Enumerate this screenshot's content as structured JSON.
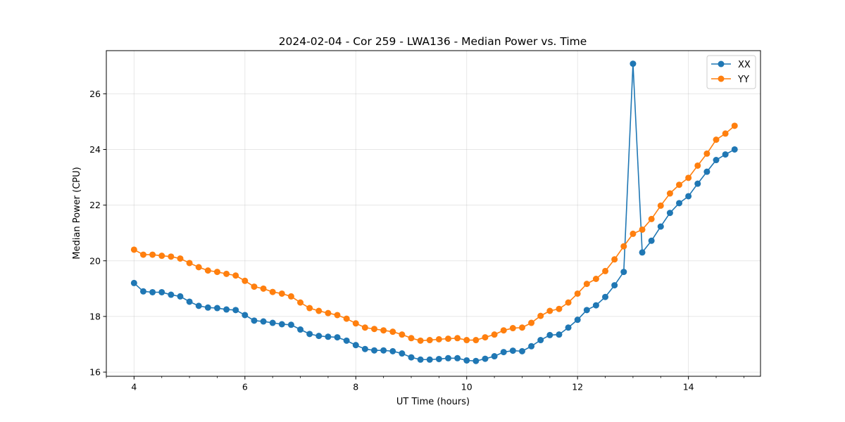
{
  "chart_data": {
    "type": "line",
    "title": "2024-02-04 - Cor 259 - LWA136 - Median Power vs. Time",
    "xlabel": "UT Time (hours)",
    "ylabel": "Median Power (CPU)",
    "xlim": [
      3.5,
      15.3
    ],
    "ylim": [
      15.85,
      27.55
    ],
    "xticks": [
      4,
      6,
      8,
      10,
      12,
      14
    ],
    "xtick_labels": [
      "4",
      "6",
      "8",
      "10",
      "12",
      "14"
    ],
    "xminor_step": 0.5,
    "yticks": [
      16,
      18,
      20,
      22,
      24,
      26
    ],
    "ytick_labels": [
      "16",
      "18",
      "20",
      "22",
      "24",
      "26"
    ],
    "grid": true,
    "legend_position": "top-right",
    "x": [
      4.0,
      4.1667,
      4.3333,
      4.5,
      4.6667,
      4.8333,
      5.0,
      5.1667,
      5.3333,
      5.5,
      5.6667,
      5.8333,
      6.0,
      6.1667,
      6.3333,
      6.5,
      6.6667,
      6.8333,
      7.0,
      7.1667,
      7.3333,
      7.5,
      7.6667,
      7.8333,
      8.0,
      8.1667,
      8.3333,
      8.5,
      8.6667,
      8.8333,
      9.0,
      9.1667,
      9.3333,
      9.5,
      9.6667,
      9.8333,
      10.0,
      10.1667,
      10.3333,
      10.5,
      10.6667,
      10.8333,
      11.0,
      11.1667,
      11.3333,
      11.5,
      11.6667,
      11.8333,
      12.0,
      12.1667,
      12.3333,
      12.5,
      12.6667,
      12.8333,
      13.0,
      13.1667,
      13.3333,
      13.5,
      13.6667,
      13.8333,
      14.0,
      14.1667,
      14.3333,
      14.5,
      14.6667,
      14.8333
    ],
    "series": [
      {
        "name": "XX",
        "color": "#1f77b4",
        "values": [
          19.2,
          18.9,
          18.87,
          18.87,
          18.78,
          18.72,
          18.53,
          18.38,
          18.32,
          18.3,
          18.25,
          18.23,
          18.05,
          17.85,
          17.82,
          17.77,
          17.72,
          17.7,
          17.53,
          17.37,
          17.3,
          17.27,
          17.25,
          17.13,
          16.97,
          16.83,
          16.78,
          16.78,
          16.75,
          16.67,
          16.53,
          16.45,
          16.45,
          16.47,
          16.5,
          16.5,
          16.42,
          16.4,
          16.48,
          16.57,
          16.72,
          16.77,
          16.75,
          16.93,
          17.15,
          17.33,
          17.35,
          17.6,
          17.88,
          18.23,
          18.4,
          18.7,
          19.12,
          19.6,
          27.08,
          20.3,
          20.72,
          21.23,
          21.72,
          22.07,
          22.32,
          22.77,
          23.2,
          23.62,
          23.82,
          24.0
        ]
      },
      {
        "name": "YY",
        "color": "#ff7f0e",
        "values": [
          20.4,
          20.22,
          20.22,
          20.18,
          20.15,
          20.08,
          19.92,
          19.77,
          19.65,
          19.6,
          19.53,
          19.47,
          19.28,
          19.07,
          19.0,
          18.88,
          18.82,
          18.72,
          18.5,
          18.3,
          18.2,
          18.12,
          18.05,
          17.92,
          17.75,
          17.6,
          17.55,
          17.5,
          17.45,
          17.35,
          17.22,
          17.13,
          17.15,
          17.18,
          17.2,
          17.22,
          17.15,
          17.15,
          17.25,
          17.35,
          17.5,
          17.58,
          17.6,
          17.77,
          18.02,
          18.2,
          18.27,
          18.5,
          18.82,
          19.17,
          19.35,
          19.63,
          20.05,
          20.52,
          20.97,
          21.12,
          21.5,
          21.98,
          22.42,
          22.73,
          22.98,
          23.42,
          23.85,
          24.35,
          24.57,
          24.85
        ]
      }
    ]
  }
}
